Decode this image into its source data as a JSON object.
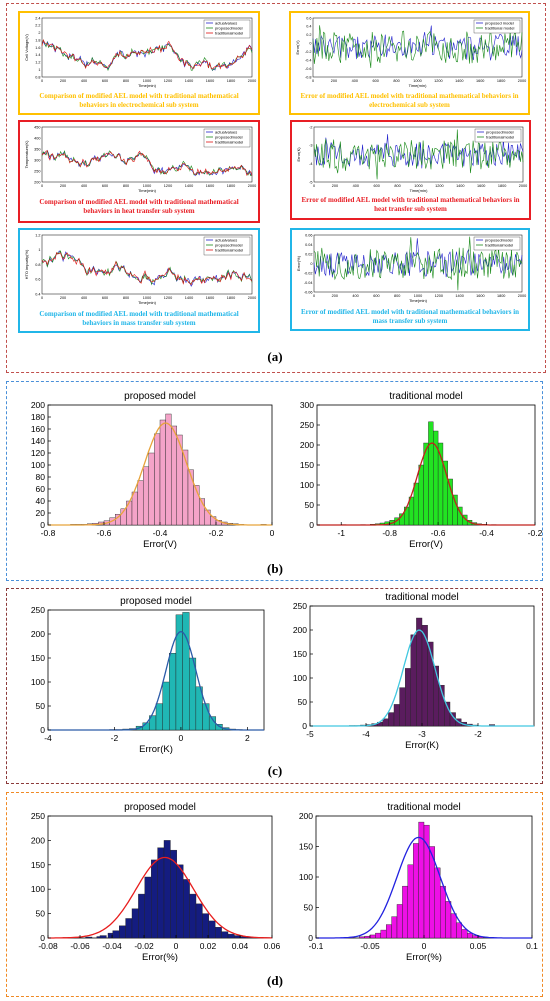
{
  "colors": {
    "frame_a": "#c0504d",
    "frame_b": "#4a90d9",
    "frame_c": "#8b3a3a",
    "frame_d": "#f08a24",
    "orange": "#ffc000",
    "red": "#e81e25",
    "cyan": "#21b6e8"
  },
  "panel_labels": {
    "a": "(a)",
    "b": "(b)",
    "c": "(c)",
    "d": "(d)"
  },
  "sub_a": [
    {
      "caption": "Comparison of modified AEL model with traditional mathematical behaviors in electrochemical sub system",
      "ylabel": "Cell Voltage(V)",
      "xlabel": "Time(min)",
      "legend": [
        "actualvalues",
        "proposedmodel",
        "traditionalmodel"
      ],
      "yticks": [
        "2.4",
        "2.2",
        "2",
        "1.8",
        "1.6",
        "1.4",
        "1.2",
        "1",
        "0.8"
      ],
      "xticks": [
        "0",
        "200",
        "400",
        "600",
        "800",
        "1000",
        "1200",
        "1400",
        "1600",
        "1800",
        "2000"
      ]
    },
    {
      "caption": "Error of modified AEL model with traditional mathematical behaviors in electrochemical sub system",
      "ylabel": "Error(V)",
      "xlabel": "Time(min)",
      "legend": [
        "proposed model",
        "traditional model"
      ],
      "yticks": [
        "0.6",
        "0.4",
        "0.2",
        "0",
        "-0.2",
        "-0.4",
        "-0.6",
        "-0.8"
      ],
      "xticks": [
        "0",
        "200",
        "400",
        "600",
        "800",
        "1000",
        "1200",
        "1400",
        "1600",
        "1800",
        "2000"
      ]
    },
    {
      "caption": "Comparison of modified AEL model with traditional mathematical behaviors in heat transfer sub system",
      "ylabel": "Temperature(K)",
      "xlabel": "Time(min)",
      "legend": [
        "actualvalues",
        "proposedmodel",
        "traditionalmodel"
      ],
      "yticks": [
        "450",
        "400",
        "350",
        "300",
        "250",
        "200"
      ],
      "xticks": [
        "0",
        "200",
        "400",
        "600",
        "800",
        "1000",
        "1200",
        "1400",
        "1600",
        "1800",
        "2000"
      ]
    },
    {
      "caption": "Error of modified AEL model with traditional mathematical behaviors in heat transfer sub system",
      "ylabel": "Error(K)",
      "xlabel": "Time(min)",
      "legend": [
        "proposedmodel",
        "traditionalmodel"
      ],
      "yticks": [
        "-2",
        "-3",
        "-4",
        "-5"
      ],
      "xticks": [
        "0",
        "200",
        "400",
        "600",
        "800",
        "1000",
        "1200",
        "1400",
        "1600",
        "1800",
        "2000"
      ]
    },
    {
      "caption": "Comparison of modified AEL model with traditional mathematical behaviors in mass transfer sub system",
      "ylabel": "HTO impurity(%)",
      "xlabel": "Time(min)",
      "legend": [
        "actualvalues",
        "proposedmodel",
        "traditionalmodel"
      ],
      "yticks": [
        "1.2",
        "1",
        "0.8",
        "0.6",
        "0.4"
      ],
      "xticks": [
        "0",
        "200",
        "400",
        "600",
        "800",
        "1000",
        "1200",
        "1400",
        "1600",
        "1800",
        "2000"
      ]
    },
    {
      "caption": "Error of modified AEL model with traditional mathematical behaviors in mass transfer sub system",
      "ylabel": "Error(%)",
      "xlabel": "Time(min)",
      "legend": [
        "proposedmodel",
        "traditionalmodel"
      ],
      "yticks": [
        "0.06",
        "0.04",
        "0.02",
        "0",
        "-0.02",
        "-0.04",
        "-0.06"
      ],
      "xticks": [
        "0",
        "200",
        "400",
        "600",
        "800",
        "1000",
        "1200",
        "1400",
        "1600",
        "1800",
        "2000"
      ]
    }
  ],
  "chart_data": [
    {
      "type": "histogram",
      "title": "proposed model",
      "xlabel": "Error(V)",
      "xlim": [
        -0.8,
        0
      ],
      "ylim": [
        0,
        200
      ],
      "xticks": [
        "-0.8",
        "-0.6",
        "-0.4",
        "-0.2",
        "0"
      ],
      "yticks": [
        "0",
        "20",
        "40",
        "60",
        "80",
        "100",
        "120",
        "140",
        "160",
        "180",
        "200"
      ],
      "bar_color": "#f4a3c8",
      "fit_color": "#e8a33a",
      "bins": [
        {
          "x": -0.71,
          "y": 1
        },
        {
          "x": -0.69,
          "y": 1
        },
        {
          "x": -0.67,
          "y": 1
        },
        {
          "x": -0.65,
          "y": 2
        },
        {
          "x": -0.63,
          "y": 3
        },
        {
          "x": -0.61,
          "y": 5
        },
        {
          "x": -0.59,
          "y": 7
        },
        {
          "x": -0.57,
          "y": 12
        },
        {
          "x": -0.55,
          "y": 18
        },
        {
          "x": -0.53,
          "y": 27
        },
        {
          "x": -0.51,
          "y": 40
        },
        {
          "x": -0.49,
          "y": 55
        },
        {
          "x": -0.47,
          "y": 74
        },
        {
          "x": -0.45,
          "y": 97
        },
        {
          "x": -0.43,
          "y": 120
        },
        {
          "x": -0.41,
          "y": 152
        },
        {
          "x": -0.39,
          "y": 175
        },
        {
          "x": -0.37,
          "y": 185
        },
        {
          "x": -0.35,
          "y": 165
        },
        {
          "x": -0.33,
          "y": 150
        },
        {
          "x": -0.31,
          "y": 125
        },
        {
          "x": -0.29,
          "y": 92
        },
        {
          "x": -0.27,
          "y": 66
        },
        {
          "x": -0.25,
          "y": 44
        },
        {
          "x": -0.23,
          "y": 25
        },
        {
          "x": -0.21,
          "y": 14
        },
        {
          "x": -0.19,
          "y": 8
        },
        {
          "x": -0.17,
          "y": 5
        },
        {
          "x": -0.15,
          "y": 3
        },
        {
          "x": -0.13,
          "y": 2
        },
        {
          "x": -0.11,
          "y": 1
        },
        {
          "x": -0.03,
          "y": 1
        }
      ],
      "fit": {
        "mean": -0.38,
        "sd": 0.075,
        "peak": 170
      }
    },
    {
      "type": "histogram",
      "title": "traditional model",
      "xlabel": "Error(V)",
      "xlim": [
        -1.1,
        -0.2
      ],
      "ylim": [
        0,
        300
      ],
      "xticks": [
        "-1",
        "-0.8",
        "-0.6",
        "-0.4",
        "-0.2"
      ],
      "yticks": [
        "0",
        "50",
        "100",
        "150",
        "200",
        "250",
        "300"
      ],
      "bar_color": "#22e322",
      "fit_color": "#c0221c",
      "bins": [
        {
          "x": -0.99,
          "y": 1
        },
        {
          "x": -0.91,
          "y": 1
        },
        {
          "x": -0.87,
          "y": 2
        },
        {
          "x": -0.85,
          "y": 3
        },
        {
          "x": -0.83,
          "y": 5
        },
        {
          "x": -0.81,
          "y": 8
        },
        {
          "x": -0.79,
          "y": 12
        },
        {
          "x": -0.77,
          "y": 18
        },
        {
          "x": -0.75,
          "y": 28
        },
        {
          "x": -0.73,
          "y": 45
        },
        {
          "x": -0.71,
          "y": 70
        },
        {
          "x": -0.69,
          "y": 105
        },
        {
          "x": -0.67,
          "y": 150
        },
        {
          "x": -0.65,
          "y": 205
        },
        {
          "x": -0.63,
          "y": 258
        },
        {
          "x": -0.61,
          "y": 235
        },
        {
          "x": -0.59,
          "y": 205
        },
        {
          "x": -0.57,
          "y": 160
        },
        {
          "x": -0.55,
          "y": 115
        },
        {
          "x": -0.53,
          "y": 75
        },
        {
          "x": -0.51,
          "y": 45
        },
        {
          "x": -0.49,
          "y": 25
        },
        {
          "x": -0.47,
          "y": 12
        },
        {
          "x": -0.45,
          "y": 6
        },
        {
          "x": -0.43,
          "y": 3
        },
        {
          "x": -0.41,
          "y": 2
        },
        {
          "x": -0.37,
          "y": 1
        }
      ],
      "fit": {
        "mean": -0.625,
        "sd": 0.06,
        "peak": 205
      }
    },
    {
      "type": "histogram",
      "title": "proposed model",
      "xlabel": "Error(K)",
      "xlim": [
        -4,
        2.5
      ],
      "ylim": [
        0,
        250
      ],
      "xticks": [
        "-4",
        "-2",
        "0",
        "2"
      ],
      "yticks": [
        "0",
        "50",
        "100",
        "150",
        "200",
        "250"
      ],
      "bar_color": "#20b7b4",
      "fit_color": "#2a5aa8",
      "bins": [
        {
          "x": -2.05,
          "y": 1
        },
        {
          "x": -1.85,
          "y": 1
        },
        {
          "x": -1.65,
          "y": 2
        },
        {
          "x": -1.45,
          "y": 3
        },
        {
          "x": -1.25,
          "y": 8
        },
        {
          "x": -1.05,
          "y": 15
        },
        {
          "x": -0.85,
          "y": 30
        },
        {
          "x": -0.65,
          "y": 55
        },
        {
          "x": -0.45,
          "y": 100
        },
        {
          "x": -0.25,
          "y": 160
        },
        {
          "x": -0.05,
          "y": 240
        },
        {
          "x": 0.15,
          "y": 245
        },
        {
          "x": 0.35,
          "y": 150
        },
        {
          "x": 0.55,
          "y": 90
        },
        {
          "x": 0.75,
          "y": 55
        },
        {
          "x": 0.95,
          "y": 28
        },
        {
          "x": 1.15,
          "y": 12
        },
        {
          "x": 1.35,
          "y": 5
        },
        {
          "x": 1.55,
          "y": 2
        },
        {
          "x": 1.75,
          "y": 1
        }
      ],
      "fit": {
        "mean": 0.0,
        "sd": 0.45,
        "peak": 205
      }
    },
    {
      "type": "histogram",
      "title": "traditional model",
      "xlabel": "Error(K)",
      "xlim": [
        -5,
        -1
      ],
      "ylim": [
        0,
        250
      ],
      "xticks": [
        "-5",
        "-4",
        "-3",
        "-2"
      ],
      "yticks": [
        "0",
        "50",
        "100",
        "150",
        "200",
        "250"
      ],
      "bar_color": "#5a1c5e",
      "fit_color": "#40c8e0",
      "bins": [
        {
          "x": -4.25,
          "y": 1
        },
        {
          "x": -4.15,
          "y": 1
        },
        {
          "x": -4.05,
          "y": 2
        },
        {
          "x": -3.95,
          "y": 3
        },
        {
          "x": -3.85,
          "y": 5
        },
        {
          "x": -3.75,
          "y": 8
        },
        {
          "x": -3.65,
          "y": 15
        },
        {
          "x": -3.55,
          "y": 28
        },
        {
          "x": -3.45,
          "y": 45
        },
        {
          "x": -3.35,
          "y": 80
        },
        {
          "x": -3.25,
          "y": 120
        },
        {
          "x": -3.15,
          "y": 190
        },
        {
          "x": -3.05,
          "y": 225
        },
        {
          "x": -2.95,
          "y": 210
        },
        {
          "x": -2.85,
          "y": 175
        },
        {
          "x": -2.75,
          "y": 125
        },
        {
          "x": -2.65,
          "y": 85
        },
        {
          "x": -2.55,
          "y": 50
        },
        {
          "x": -2.45,
          "y": 28
        },
        {
          "x": -2.35,
          "y": 15
        },
        {
          "x": -2.25,
          "y": 8
        },
        {
          "x": -2.15,
          "y": 4
        },
        {
          "x": -2.05,
          "y": 2
        },
        {
          "x": -1.75,
          "y": 3
        }
      ],
      "fit": {
        "mean": -3.05,
        "sd": 0.28,
        "peak": 200
      }
    },
    {
      "type": "histogram",
      "title": "proposed model",
      "xlabel": "Error(%)",
      "xlim": [
        -0.08,
        0.06
      ],
      "ylim": [
        0,
        250
      ],
      "xticks": [
        "-0.08",
        "-0.06",
        "-0.04",
        "-0.02",
        "0",
        "0.02",
        "0.04",
        "0.06"
      ],
      "yticks": [
        "0",
        "50",
        "100",
        "150",
        "200",
        "250"
      ],
      "bar_color": "#141c80",
      "fit_color": "#e81e1e",
      "bins": [
        {
          "x": -0.0685,
          "y": 1
        },
        {
          "x": -0.0615,
          "y": 1
        },
        {
          "x": -0.0545,
          "y": 2
        },
        {
          "x": -0.0475,
          "y": 3
        },
        {
          "x": -0.0455,
          "y": 5
        },
        {
          "x": -0.0405,
          "y": 10
        },
        {
          "x": -0.0375,
          "y": 15
        },
        {
          "x": -0.0335,
          "y": 25
        },
        {
          "x": -0.0295,
          "y": 40
        },
        {
          "x": -0.0255,
          "y": 60
        },
        {
          "x": -0.0215,
          "y": 90
        },
        {
          "x": -0.0175,
          "y": 125
        },
        {
          "x": -0.0135,
          "y": 160
        },
        {
          "x": -0.0095,
          "y": 185
        },
        {
          "x": -0.0055,
          "y": 200
        },
        {
          "x": -0.0015,
          "y": 180
        },
        {
          "x": 0.0025,
          "y": 150
        },
        {
          "x": 0.0065,
          "y": 120
        },
        {
          "x": 0.0105,
          "y": 90
        },
        {
          "x": 0.0145,
          "y": 70
        },
        {
          "x": 0.0185,
          "y": 50
        },
        {
          "x": 0.0225,
          "y": 35
        },
        {
          "x": 0.0265,
          "y": 22
        },
        {
          "x": 0.0305,
          "y": 13
        },
        {
          "x": 0.0345,
          "y": 8
        },
        {
          "x": 0.0385,
          "y": 5
        },
        {
          "x": 0.0425,
          "y": 3
        },
        {
          "x": 0.0465,
          "y": 2
        },
        {
          "x": 0.0505,
          "y": 1
        },
        {
          "x": 0.0565,
          "y": 1
        }
      ],
      "fit": {
        "mean": -0.007,
        "sd": 0.018,
        "peak": 165
      }
    },
    {
      "type": "histogram",
      "title": "traditional model",
      "xlabel": "Error(%)",
      "xlim": [
        -0.1,
        0.1
      ],
      "ylim": [
        0,
        200
      ],
      "xticks": [
        "-0.1",
        "-0.05",
        "0",
        "0.05",
        "0.1"
      ],
      "yticks": [
        "0",
        "50",
        "100",
        "150",
        "200"
      ],
      "bar_color": "#ee10e6",
      "fit_color": "#2222e0",
      "bins": [
        {
          "x": -0.0675,
          "y": 1
        },
        {
          "x": -0.0575,
          "y": 2
        },
        {
          "x": -0.0525,
          "y": 3
        },
        {
          "x": -0.0475,
          "y": 5
        },
        {
          "x": -0.0425,
          "y": 8
        },
        {
          "x": -0.0375,
          "y": 13
        },
        {
          "x": -0.0325,
          "y": 22
        },
        {
          "x": -0.0275,
          "y": 35
        },
        {
          "x": -0.0225,
          "y": 55
        },
        {
          "x": -0.0175,
          "y": 85
        },
        {
          "x": -0.0125,
          "y": 120
        },
        {
          "x": -0.0075,
          "y": 155
        },
        {
          "x": -0.0025,
          "y": 190
        },
        {
          "x": 0.0025,
          "y": 185
        },
        {
          "x": 0.0075,
          "y": 150
        },
        {
          "x": 0.0125,
          "y": 115
        },
        {
          "x": 0.0175,
          "y": 85
        },
        {
          "x": 0.0225,
          "y": 60
        },
        {
          "x": 0.0275,
          "y": 40
        },
        {
          "x": 0.0325,
          "y": 25
        },
        {
          "x": 0.0375,
          "y": 14
        },
        {
          "x": 0.0425,
          "y": 8
        },
        {
          "x": 0.0475,
          "y": 4
        },
        {
          "x": 0.0525,
          "y": 2
        },
        {
          "x": 0.0625,
          "y": 1
        }
      ],
      "fit": {
        "mean": -0.005,
        "sd": 0.02,
        "peak": 165
      }
    }
  ]
}
